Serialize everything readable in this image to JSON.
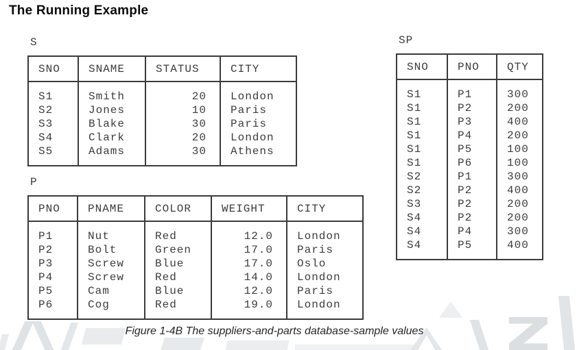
{
  "page": {
    "title": "The Running Example",
    "caption": "Figure 1-4B The suppliers-and-parts database-sample values"
  },
  "colors": {
    "text": "#3c3c3c",
    "table_border": "#3a3a3a",
    "title_text": "#0b0b0b",
    "watermark": "#dfe3e6"
  },
  "tables": [
    {
      "name": "S",
      "key_columns": [
        "SNO"
      ],
      "columns": [
        "SNO",
        "SNAME",
        "STATUS",
        "CITY"
      ],
      "rows": [
        [
          "S1",
          "Smith",
          "20",
          "London"
        ],
        [
          "S2",
          "Jones",
          "10",
          "Paris"
        ],
        [
          "S3",
          "Blake",
          "30",
          "Paris"
        ],
        [
          "S4",
          "Clark",
          "20",
          "London"
        ],
        [
          "S5",
          "Adams",
          "30",
          "Athens"
        ]
      ]
    },
    {
      "name": "P",
      "key_columns": [
        "PNO"
      ],
      "columns": [
        "PNO",
        "PNAME",
        "COLOR",
        "WEIGHT",
        "CITY"
      ],
      "rows": [
        [
          "P1",
          "Nut",
          "Red",
          "12.0",
          "London"
        ],
        [
          "P2",
          "Bolt",
          "Green",
          "17.0",
          "Paris"
        ],
        [
          "P3",
          "Screw",
          "Blue",
          "17.0",
          "Oslo"
        ],
        [
          "P4",
          "Screw",
          "Red",
          "14.0",
          "London"
        ],
        [
          "P5",
          "Cam",
          "Blue",
          "12.0",
          "Paris"
        ],
        [
          "P6",
          "Cog",
          "Red",
          "19.0",
          "London"
        ]
      ]
    },
    {
      "name": "SP",
      "key_columns": [
        "SNO",
        "PNO"
      ],
      "columns": [
        "SNO",
        "PNO",
        "QTY"
      ],
      "rows": [
        [
          "S1",
          "P1",
          "300"
        ],
        [
          "S1",
          "P2",
          "200"
        ],
        [
          "S1",
          "P3",
          "400"
        ],
        [
          "S1",
          "P4",
          "200"
        ],
        [
          "S1",
          "P5",
          "100"
        ],
        [
          "S1",
          "P6",
          "100"
        ],
        [
          "S2",
          "P1",
          "300"
        ],
        [
          "S2",
          "P2",
          "400"
        ],
        [
          "S3",
          "P2",
          "200"
        ],
        [
          "S4",
          "P2",
          "200"
        ],
        [
          "S4",
          "P4",
          "300"
        ],
        [
          "S4",
          "P5",
          "400"
        ]
      ]
    }
  ]
}
